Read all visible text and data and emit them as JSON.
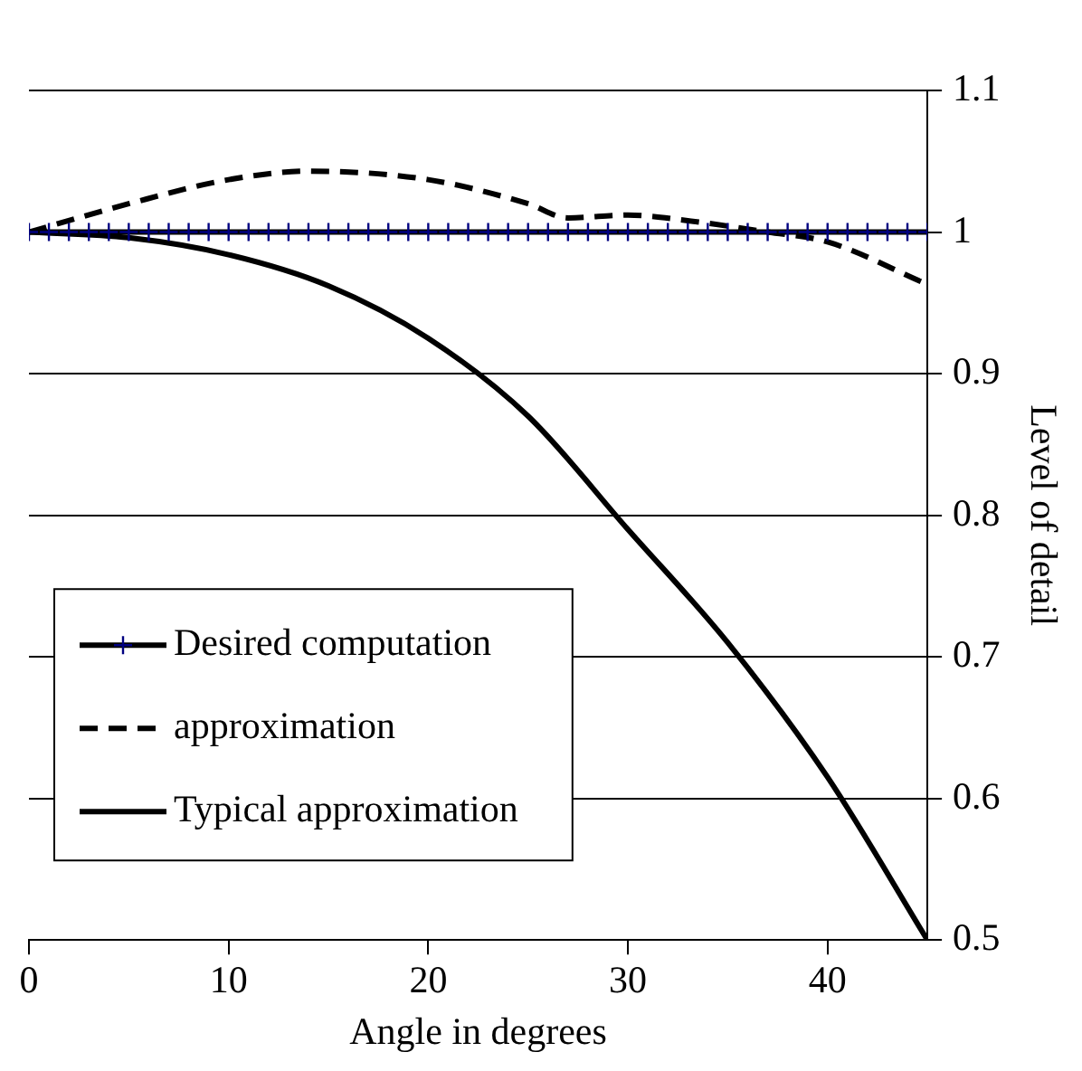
{
  "chart_data": {
    "type": "line",
    "xlabel": "Angle in degrees",
    "ylabel": "Level of detail",
    "xlim": [
      0,
      45
    ],
    "xticks": [
      0,
      10,
      20,
      30,
      40
    ],
    "ylim": [
      0.5,
      1.1
    ],
    "yticks": [
      0.5,
      0.6,
      0.7,
      0.8,
      0.9,
      1,
      1.1
    ],
    "grid": "y",
    "legend": "bottom left",
    "series": [
      {
        "name": "Desired computation",
        "color": "#000080",
        "marker": "cross",
        "line_style": "solid",
        "x": [
          0,
          1,
          2,
          3,
          4,
          5,
          6,
          7,
          8,
          9,
          10,
          11,
          12,
          13,
          14,
          15,
          16,
          17,
          18,
          19,
          20,
          21,
          22,
          23,
          24,
          25,
          26,
          27,
          28,
          29,
          30,
          31,
          32,
          33,
          34,
          35,
          36,
          37,
          38,
          39,
          40,
          41,
          42,
          43,
          44,
          45
        ],
        "values": [
          1,
          1,
          1,
          1,
          1,
          1,
          1,
          1,
          1,
          1,
          1,
          1,
          1,
          1,
          1,
          1,
          1,
          1,
          1,
          1,
          1,
          1,
          1,
          1,
          1,
          1,
          1,
          1,
          1,
          1,
          1,
          1,
          1,
          1,
          1,
          1,
          1,
          1,
          1,
          1,
          1,
          1,
          1,
          1,
          1,
          1
        ]
      },
      {
        "name": "approximation",
        "color": "#000000",
        "marker": "none",
        "line_style": "dashed",
        "x": [
          0,
          5,
          10,
          14,
          20,
          25,
          27,
          30,
          33,
          37,
          40,
          45
        ],
        "values": [
          1,
          1.02,
          1.037,
          1.043,
          1.037,
          1.02,
          1.01,
          1.012,
          1.008,
          1,
          0.993,
          0.963
        ]
      },
      {
        "name": "Typical approximation",
        "color": "#000000",
        "marker": "none",
        "line_style": "solid",
        "x": [
          0,
          5,
          10,
          15,
          20,
          25,
          30,
          35,
          40,
          45
        ],
        "values": [
          1,
          0.996,
          0.984,
          0.962,
          0.925,
          0.87,
          0.79,
          0.71,
          0.615,
          0.5
        ]
      }
    ]
  }
}
